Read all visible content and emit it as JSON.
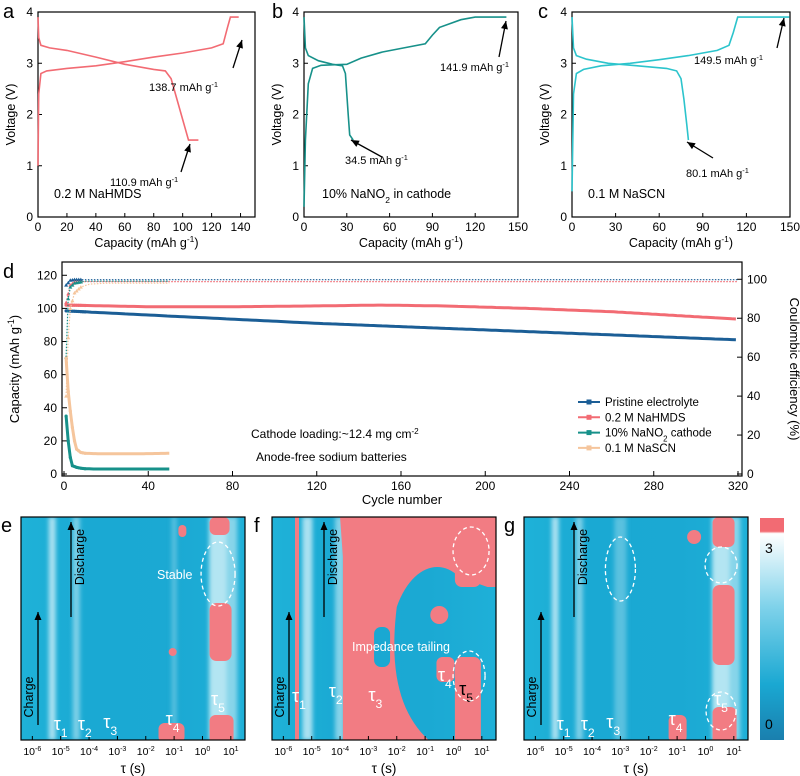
{
  "colors": {
    "pink": "#f26b73",
    "teal": "#17918a",
    "cyan": "#2cc4cc",
    "navy": "#1b5e96",
    "peach": "#f5c59c",
    "heat_low": "#1aa8d2",
    "heat_high": "#f27c83"
  },
  "chart_data": [
    {
      "panel": "a",
      "type": "line",
      "xlabel": "Capacity (mAh g",
      "xlabel_sup": "-1",
      "xlabel_tail": ")",
      "ylabel": "Voltage (V)",
      "xlim": [
        0,
        150
      ],
      "ylim": [
        0,
        4
      ],
      "xticks": [
        "0",
        "20",
        "40",
        "60",
        "80",
        "100",
        "120",
        "140"
      ],
      "yticks": [
        "0",
        "1",
        "2",
        "3",
        "4"
      ],
      "legend": "0.2 M NaHMDS",
      "annotations": [
        {
          "text": "138.7 mAh g",
          "sup": "-1"
        },
        {
          "text": "110.9 mAh g",
          "sup": "-1"
        }
      ],
      "series": [
        {
          "role": "charge",
          "x": [
            0,
            0.5,
            2,
            6,
            20,
            40,
            60,
            80,
            100,
            120,
            128,
            131,
            133,
            138.7
          ],
          "y": [
            1.0,
            2.4,
            2.8,
            2.85,
            2.9,
            2.95,
            3.03,
            3.12,
            3.2,
            3.3,
            3.38,
            3.7,
            3.9,
            3.9
          ]
        },
        {
          "role": "discharge",
          "x": [
            0,
            0.5,
            2,
            8,
            20,
            40,
            60,
            80,
            88,
            92,
            96,
            100,
            104,
            110.9
          ],
          "y": [
            3.9,
            3.5,
            3.35,
            3.3,
            3.25,
            3.12,
            2.98,
            2.88,
            2.85,
            2.7,
            2.3,
            1.9,
            1.5,
            1.5
          ]
        }
      ]
    },
    {
      "panel": "b",
      "type": "line",
      "xlabel": "Capacity (mAh g",
      "xlabel_sup": "-1",
      "xlabel_tail": ")",
      "ylabel": "Voltage (V)",
      "xlim": [
        0,
        150
      ],
      "ylim": [
        0,
        4
      ],
      "xticks": [
        "0",
        "30",
        "60",
        "90",
        "120",
        "150"
      ],
      "yticks": [
        "0",
        "1",
        "2",
        "3",
        "4"
      ],
      "legend": "10% NaNO",
      "legend_sub": "2",
      "legend_tail": " in cathode",
      "annotations": [
        {
          "text": "141.9 mAh g",
          "sup": "-1"
        },
        {
          "text": "34.5 mAh g",
          "sup": "-1"
        }
      ],
      "series": [
        {
          "role": "charge",
          "x": [
            0,
            1,
            3,
            6,
            12,
            20,
            30,
            40,
            55,
            70,
            85,
            90,
            95,
            110,
            120,
            141.9
          ],
          "y": [
            0.2,
            1.5,
            2.6,
            2.9,
            2.96,
            2.97,
            2.98,
            3.1,
            3.22,
            3.3,
            3.38,
            3.55,
            3.7,
            3.85,
            3.9,
            3.9
          ]
        },
        {
          "role": "discharge",
          "x": [
            0,
            1,
            3,
            10,
            20,
            27,
            29,
            30,
            31,
            32,
            34.5
          ],
          "y": [
            3.9,
            3.3,
            3.15,
            3.05,
            2.98,
            2.95,
            2.8,
            2.4,
            2.0,
            1.6,
            1.5
          ]
        }
      ]
    },
    {
      "panel": "c",
      "type": "line",
      "xlabel": "Capacity (mAh g",
      "xlabel_sup": "-1",
      "xlabel_tail": ")",
      "ylabel": "Voltage (V)",
      "xlim": [
        0,
        150
      ],
      "ylim": [
        0,
        4
      ],
      "xticks": [
        "0",
        "30",
        "60",
        "90",
        "120",
        "150"
      ],
      "yticks": [
        "0",
        "1",
        "2",
        "3",
        "4"
      ],
      "legend": "0.1 M NaSCN",
      "annotations": [
        {
          "text": "149.5 mAh g",
          "sup": "-1"
        },
        {
          "text": "80.1 mAh g",
          "sup": "-1"
        }
      ],
      "series": [
        {
          "role": "charge",
          "x": [
            0,
            1,
            3,
            8,
            20,
            40,
            60,
            80,
            100,
            108,
            111,
            114,
            149.5
          ],
          "y": [
            0.5,
            2.4,
            2.8,
            2.88,
            2.95,
            3.0,
            3.07,
            3.15,
            3.25,
            3.35,
            3.6,
            3.9,
            3.9
          ]
        },
        {
          "role": "discharge",
          "x": [
            0,
            1,
            3,
            10,
            25,
            45,
            65,
            72,
            75,
            77,
            79,
            80.1
          ],
          "y": [
            3.9,
            3.3,
            3.15,
            3.08,
            3.0,
            2.95,
            2.9,
            2.85,
            2.7,
            2.3,
            1.8,
            1.5
          ]
        }
      ]
    },
    {
      "panel": "d",
      "type": "scatter",
      "xlabel": "Cycle number",
      "ylabel": "Capacity (mAh g",
      "ylabel_sup": "-1",
      "ylabel_tail": ")",
      "ylabel_right": "Coulombic efficiency (%)",
      "xlim": [
        0,
        320
      ],
      "ylim": [
        0,
        125
      ],
      "ylim_right": [
        0,
        104
      ],
      "xticks": [
        "0",
        "40",
        "80",
        "120",
        "160",
        "200",
        "240",
        "280",
        "320"
      ],
      "yticks": [
        "0",
        "20",
        "40",
        "60",
        "80",
        "100",
        "120"
      ],
      "yticks_right": [
        "0",
        "20",
        "40",
        "60",
        "80",
        "100"
      ],
      "legend_position": "bottom-right",
      "annotations": [
        {
          "text": "Cathode loading:~12.4 mg cm",
          "sup": "-2"
        },
        {
          "text": "Anode-free sodium batteries"
        }
      ],
      "series": [
        {
          "name": "Pristine electrolyte",
          "color_key": "navy",
          "capacity": {
            "x": [
              1,
              40,
              80,
              120,
              160,
              200,
              240,
              280,
              320
            ],
            "y": [
              98.5,
              96,
              93.5,
              91,
              89,
              87,
              85,
              83,
              81
            ]
          },
          "efficiency": {
            "x": [
              1,
              3,
              5,
              10,
              320
            ],
            "y": [
              97,
              99.5,
              99.8,
              99.8,
              99.8
            ]
          }
        },
        {
          "name": "0.2 M NaHMDS",
          "label": "0.2 M NaHMDS",
          "color_key": "pink",
          "capacity": {
            "x": [
              1,
              40,
              80,
              120,
              150,
              180,
              220,
              260,
              300,
              320
            ],
            "y": [
              102,
              101,
              101,
              101.5,
              102,
              101.5,
              100,
              98,
              95,
              93.5
            ]
          },
          "efficiency": {
            "x": [
              1,
              3,
              5,
              10,
              320
            ],
            "y": [
              88,
              97,
              98.5,
              98.8,
              98.8
            ]
          }
        },
        {
          "name": "10% NaNO",
          "name_sub": "2",
          "name_tail": " cathode",
          "color_key": "teal",
          "capacity": {
            "x": [
              1,
              2,
              3,
              4,
              6,
              8,
              10,
              15,
              20,
              30,
              40,
              50
            ],
            "y": [
              35,
              20,
              10,
              5,
              4,
              3.5,
              3.2,
              3,
              3,
              3,
              3,
              3
            ]
          },
          "efficiency": {
            "x": [
              1,
              2,
              3,
              5,
              10,
              20,
              50
            ],
            "y": [
              60,
              90,
              96,
              98,
              99,
              99,
              99
            ]
          }
        },
        {
          "name": "0.1 M NaSCN",
          "color_key": "peach",
          "capacity": {
            "x": [
              1,
              2,
              3,
              4,
              5,
              6,
              8,
              10,
              15,
              20,
              30,
              40,
              50
            ],
            "y": [
              70,
              50,
              38,
              28,
              20,
              15,
              13,
              12.5,
              12.3,
              12.2,
              12.2,
              12.3,
              12.5
            ]
          },
          "efficiency": {
            "x": [
              1,
              2,
              3,
              5,
              8,
              12,
              20,
              50
            ],
            "y": [
              40,
              70,
              85,
              93,
              96,
              97.5,
              98,
              98
            ]
          }
        }
      ]
    },
    {
      "panel": "e",
      "type": "heatmap",
      "xlabel": "τ (s)",
      "xlim_log": [
        -6.4,
        1.5
      ],
      "xticks": [
        {
          "b": "10",
          "e": "-6"
        },
        {
          "b": "10",
          "e": "-5"
        },
        {
          "b": "10",
          "e": "-4"
        },
        {
          "b": "10",
          "e": "-3"
        },
        {
          "b": "10",
          "e": "-2"
        },
        {
          "b": "10",
          "e": "-1"
        },
        {
          "b": "10",
          "e": "0"
        },
        {
          "b": "10",
          "e": "1"
        }
      ],
      "charge_label": "Charge",
      "discharge_label": "Discharge",
      "annotations": [
        {
          "text": "Stable"
        }
      ],
      "tau_labels": [
        {
          "t": "τ",
          "s": "1"
        },
        {
          "t": "τ",
          "s": "2"
        },
        {
          "t": "τ",
          "s": "3"
        },
        {
          "t": "τ",
          "s": "4"
        },
        {
          "t": "τ",
          "s": "5"
        }
      ]
    },
    {
      "panel": "f",
      "type": "heatmap",
      "xlabel": "τ (s)",
      "xlim_log": [
        -6.4,
        1.5
      ],
      "xticks": [
        {
          "b": "10",
          "e": "-6"
        },
        {
          "b": "10",
          "e": "-5"
        },
        {
          "b": "10",
          "e": "-4"
        },
        {
          "b": "10",
          "e": "-3"
        },
        {
          "b": "10",
          "e": "-2"
        },
        {
          "b": "10",
          "e": "-1"
        },
        {
          "b": "10",
          "e": "0"
        },
        {
          "b": "10",
          "e": "1"
        }
      ],
      "charge_label": "Charge",
      "discharge_label": "Discharge",
      "annotations": [
        {
          "text": "Impedance tailing"
        }
      ],
      "tau_labels": [
        {
          "t": "τ",
          "s": "1"
        },
        {
          "t": "τ",
          "s": "2"
        },
        {
          "t": "τ",
          "s": "3"
        },
        {
          "t": "τ",
          "s": "4"
        },
        {
          "t": "τ",
          "s": "5"
        }
      ]
    },
    {
      "panel": "g",
      "type": "heatmap",
      "xlabel": "τ (s)",
      "xlim_log": [
        -6.4,
        1.5
      ],
      "xticks": [
        {
          "b": "10",
          "e": "-6"
        },
        {
          "b": "10",
          "e": "-5"
        },
        {
          "b": "10",
          "e": "-4"
        },
        {
          "b": "10",
          "e": "-3"
        },
        {
          "b": "10",
          "e": "-2"
        },
        {
          "b": "10",
          "e": "-1"
        },
        {
          "b": "10",
          "e": "0"
        },
        {
          "b": "10",
          "e": "1"
        }
      ],
      "charge_label": "Charge",
      "discharge_label": "Discharge",
      "tau_labels": [
        {
          "t": "τ",
          "s": "1"
        },
        {
          "t": "τ",
          "s": "2"
        },
        {
          "t": "τ",
          "s": "3"
        },
        {
          "t": "τ",
          "s": "4"
        },
        {
          "t": "τ",
          "s": "5"
        }
      ]
    }
  ],
  "colorbar": {
    "max": "3",
    "min": "0"
  }
}
